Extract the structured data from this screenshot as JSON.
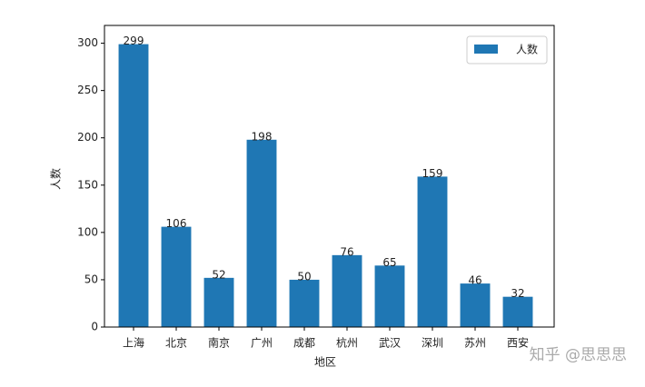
{
  "chart_data": {
    "type": "bar",
    "categories": [
      "上海",
      "北京",
      "南京",
      "广州",
      "成都",
      "杭州",
      "武汉",
      "深圳",
      "苏州",
      "西安"
    ],
    "series": [
      {
        "name": "人数",
        "color": "#1f77b4",
        "values": [
          299,
          106,
          52,
          198,
          50,
          76,
          65,
          159,
          46,
          32
        ]
      }
    ],
    "x_label": "地区",
    "y_label": "人数",
    "ylim": [
      0,
      314
    ],
    "yticks": [
      0,
      50,
      100,
      150,
      200,
      250,
      300
    ],
    "legend": "upper right",
    "watermark": "知乎 @思思思"
  }
}
